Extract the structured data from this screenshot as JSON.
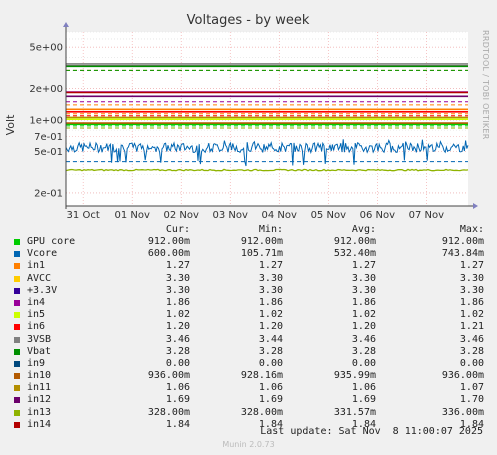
{
  "chart_data": {
    "type": "line",
    "title": "Voltages - by week",
    "ylabel": "Volt",
    "yscale": "log",
    "ylim": [
      0.15,
      7
    ],
    "y_ticks": [
      {
        "value": 5,
        "label": "5e+00"
      },
      {
        "value": 2,
        "label": "2e+00"
      },
      {
        "value": 1,
        "label": "1e+00"
      },
      {
        "value": 0.7,
        "label": "7e-01"
      },
      {
        "value": 0.5,
        "label": "5e-01"
      },
      {
        "value": 0.2,
        "label": "2e-01"
      }
    ],
    "x_ticks": [
      "31 Oct",
      "01 Nov",
      "02 Nov",
      "03 Nov",
      "04 Nov",
      "05 Nov",
      "06 Nov",
      "07 Nov"
    ],
    "grid": true,
    "legend_position": "bottom",
    "columns": [
      "Cur:",
      "Min:",
      "Avg:",
      "Max:"
    ],
    "series": [
      {
        "name": "GPU core",
        "color": "#00cc00",
        "cur": "912.00m",
        "min": "912.00m",
        "avg": "912.00m",
        "max": "912.00m",
        "value": 0.912,
        "dashed": false
      },
      {
        "name": "Vcore",
        "color": "#0066b3",
        "cur": "600.00m",
        "min": "105.71m",
        "avg": "532.40m",
        "max": "743.84m",
        "value": 0.5324,
        "dashed": false,
        "noisy": true
      },
      {
        "name": "in1",
        "color": "#ff8000",
        "cur": "1.27",
        "min": "1.27",
        "avg": "1.27",
        "max": "1.27",
        "value": 1.27,
        "dashed": false
      },
      {
        "name": "AVCC",
        "color": "#ffcc00",
        "cur": "3.30",
        "min": "3.30",
        "avg": "3.30",
        "max": "3.30",
        "value": 3.3,
        "dashed": false
      },
      {
        "name": "+3.3V",
        "color": "#330099",
        "cur": "3.30",
        "min": "3.30",
        "avg": "3.30",
        "max": "3.30",
        "value": 3.3,
        "dashed": false
      },
      {
        "name": "in4",
        "color": "#990099",
        "cur": "1.86",
        "min": "1.86",
        "avg": "1.86",
        "max": "1.86",
        "value": 1.86,
        "dashed": false
      },
      {
        "name": "in5",
        "color": "#ccff00",
        "cur": "1.02",
        "min": "1.02",
        "avg": "1.02",
        "max": "1.02",
        "value": 1.02,
        "dashed": false
      },
      {
        "name": "in6",
        "color": "#ff0000",
        "cur": "1.20",
        "min": "1.20",
        "avg": "1.20",
        "max": "1.21",
        "value": 1.2,
        "dashed": false
      },
      {
        "name": "3VSB",
        "color": "#808080",
        "cur": "3.46",
        "min": "3.44",
        "avg": "3.46",
        "max": "3.46",
        "value": 3.46,
        "dashed": false
      },
      {
        "name": "Vbat",
        "color": "#008f00",
        "cur": "3.28",
        "min": "3.28",
        "avg": "3.28",
        "max": "3.28",
        "value": 3.28,
        "dashed": false
      },
      {
        "name": "in9",
        "color": "#00487d",
        "cur": "0.00",
        "min": "0.00",
        "avg": "0.00",
        "max": "0.00",
        "value": 0,
        "dashed": false
      },
      {
        "name": "in10",
        "color": "#b35a00",
        "cur": "936.00m",
        "min": "928.16m",
        "avg": "935.99m",
        "max": "936.00m",
        "value": 0.936,
        "dashed": false
      },
      {
        "name": "in11",
        "color": "#b38f00",
        "cur": "1.06",
        "min": "1.06",
        "avg": "1.06",
        "max": "1.07",
        "value": 1.06,
        "dashed": false
      },
      {
        "name": "in12",
        "color": "#6b006b",
        "cur": "1.69",
        "min": "1.69",
        "avg": "1.69",
        "max": "1.70",
        "value": 1.69,
        "dashed": false
      },
      {
        "name": "in13",
        "color": "#8fb300",
        "cur": "328.00m",
        "min": "328.00m",
        "avg": "331.57m",
        "max": "336.00m",
        "value": 0.3316,
        "dashed": false
      },
      {
        "name": "in14",
        "color": "#b30000",
        "cur": "1.84",
        "min": "1.84",
        "avg": "1.84",
        "max": "1.84",
        "value": 1.84,
        "dashed": false
      }
    ],
    "limit_lines": [
      {
        "value": 0.4,
        "color": "#0066b3"
      },
      {
        "value": 3.0,
        "color": "#ffcc00"
      },
      {
        "value": 3.0,
        "color": "#008f00"
      },
      {
        "value": 1.15,
        "color": "#ff8000"
      },
      {
        "value": 1.1,
        "color": "#ff0000"
      },
      {
        "value": 1.4,
        "color": "#ff8000"
      },
      {
        "value": 1.5,
        "color": "#990099"
      },
      {
        "value": 0.88,
        "color": "#00cc00"
      },
      {
        "value": 0.84,
        "color": "#8fb300"
      }
    ]
  },
  "footer": {
    "last_update": "Last update: Sat Nov  8 11:00:07 2025",
    "munin_version": "Munin 2.0.73",
    "vertical_label": "RRDTOOL / TOBI OETIKER"
  }
}
